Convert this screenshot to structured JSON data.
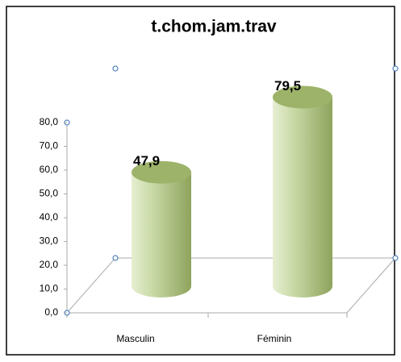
{
  "chart_data": {
    "type": "bar",
    "title": "t.chom.jam.trav",
    "categories": [
      "Masculin",
      "Féminin"
    ],
    "values": [
      47.9,
      79.5
    ],
    "value_labels": [
      "47,9",
      "79,5"
    ],
    "color": "#b5c98a",
    "ylim": [
      0,
      80
    ],
    "yticks": [
      {
        "value": 0,
        "label": "0,0"
      },
      {
        "value": 10,
        "label": "10,0"
      },
      {
        "value": 20,
        "label": "20,0"
      },
      {
        "value": 30,
        "label": "30,0"
      },
      {
        "value": 40,
        "label": "40,0"
      },
      {
        "value": 50,
        "label": "50,0"
      },
      {
        "value": 60,
        "label": "60,0"
      },
      {
        "value": 70,
        "label": "70,0"
      },
      {
        "value": 80,
        "label": "80,0"
      }
    ]
  }
}
